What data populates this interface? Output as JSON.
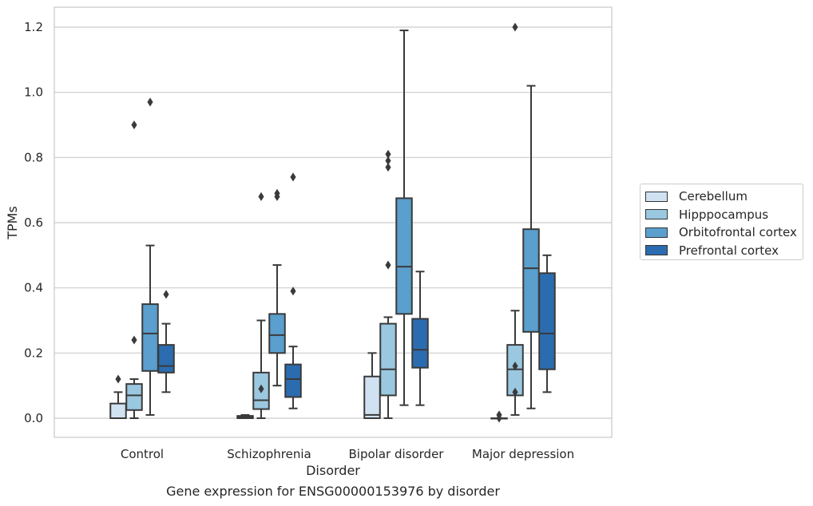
{
  "chart_data": {
    "type": "box",
    "xlabel": "Disorder",
    "ylabel": "TPMs",
    "caption": "Gene expression for ENSG00000153976 by disorder",
    "ylim": [
      -0.06,
      1.26
    ],
    "yticks": [
      "0.0",
      "0.2",
      "0.4",
      "0.6",
      "0.8",
      "1.0",
      "1.2"
    ],
    "grid": "horizontal",
    "legend_position": "right",
    "categories": [
      "Control",
      "Schizophrenia",
      "Bipolar disorder",
      "Major depression"
    ],
    "series": [
      {
        "name": "Cerebellum",
        "color": "#d0e1f2",
        "boxes": [
          {
            "whislo": 0.0,
            "q1": 0.0,
            "med": 0.0,
            "q3": 0.045,
            "whishi": 0.08,
            "fliers": [
              0.12
            ]
          },
          {
            "whislo": 0.0,
            "q1": 0.0,
            "med": 0.003,
            "q3": 0.007,
            "whishi": 0.01,
            "fliers": []
          },
          {
            "whislo": 0.0,
            "q1": 0.0,
            "med": 0.01,
            "q3": 0.128,
            "whishi": 0.2,
            "fliers": []
          },
          {
            "whislo": 0.0,
            "q1": 0.0,
            "med": 0.0,
            "q3": 0.0,
            "whishi": 0.0,
            "fliers": [
              0.0,
              0.01
            ]
          }
        ]
      },
      {
        "name": "Hipppocampus",
        "color": "#9ac8e0",
        "boxes": [
          {
            "whislo": 0.0,
            "q1": 0.025,
            "med": 0.07,
            "q3": 0.105,
            "whishi": 0.12,
            "fliers": [
              0.24,
              0.9
            ]
          },
          {
            "whislo": 0.0,
            "q1": 0.028,
            "med": 0.055,
            "q3": 0.14,
            "whishi": 0.3,
            "fliers": [
              0.09,
              0.68
            ]
          },
          {
            "whislo": 0.0,
            "q1": 0.07,
            "med": 0.15,
            "q3": 0.29,
            "whishi": 0.31,
            "fliers": [
              0.47,
              0.77,
              0.79,
              0.81
            ]
          },
          {
            "whislo": 0.01,
            "q1": 0.07,
            "med": 0.15,
            "q3": 0.225,
            "whishi": 0.33,
            "fliers": [
              0.08,
              0.16,
              1.2
            ]
          }
        ]
      },
      {
        "name": "Orbitofrontal cortex",
        "color": "#5a9fcd",
        "boxes": [
          {
            "whislo": 0.01,
            "q1": 0.145,
            "med": 0.26,
            "q3": 0.35,
            "whishi": 0.53,
            "fliers": [
              0.97
            ]
          },
          {
            "whislo": 0.1,
            "q1": 0.2,
            "med": 0.255,
            "q3": 0.32,
            "whishi": 0.47,
            "fliers": [
              0.68,
              0.69
            ]
          },
          {
            "whislo": 0.04,
            "q1": 0.32,
            "med": 0.465,
            "q3": 0.675,
            "whishi": 1.19,
            "fliers": []
          },
          {
            "whislo": 0.03,
            "q1": 0.265,
            "med": 0.46,
            "q3": 0.58,
            "whishi": 1.02,
            "fliers": []
          }
        ]
      },
      {
        "name": "Prefrontal cortex",
        "color": "#2b6cb0",
        "boxes": [
          {
            "whislo": 0.08,
            "q1": 0.14,
            "med": 0.16,
            "q3": 0.225,
            "whishi": 0.29,
            "fliers": [
              0.38
            ]
          },
          {
            "whislo": 0.03,
            "q1": 0.065,
            "med": 0.12,
            "q3": 0.165,
            "whishi": 0.22,
            "fliers": [
              0.39,
              0.74
            ]
          },
          {
            "whislo": 0.04,
            "q1": 0.155,
            "med": 0.21,
            "q3": 0.305,
            "whishi": 0.45,
            "fliers": []
          },
          {
            "whislo": 0.08,
            "q1": 0.15,
            "med": 0.26,
            "q3": 0.445,
            "whishi": 0.5,
            "fliers": []
          }
        ]
      }
    ]
  }
}
